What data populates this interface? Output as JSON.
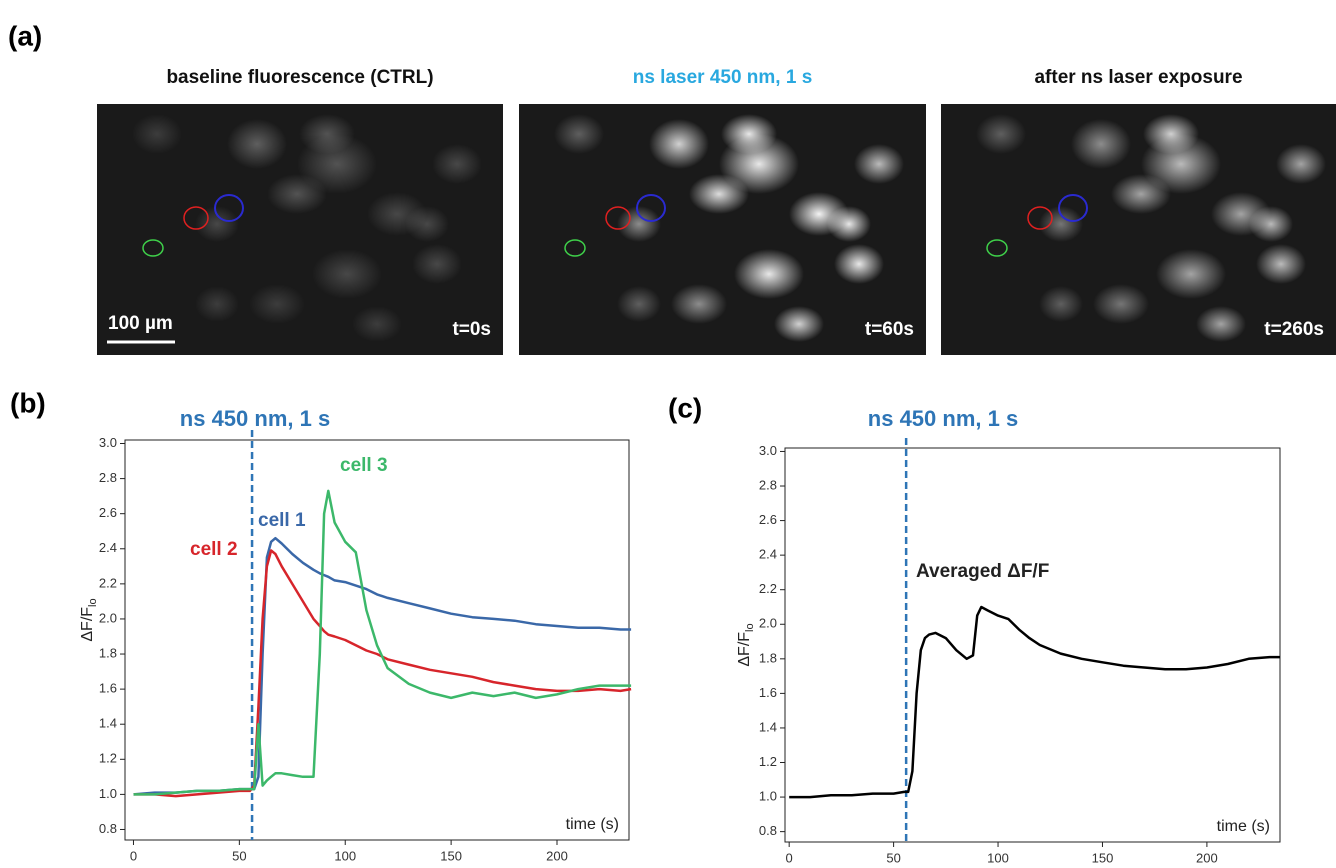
{
  "panel_a": {
    "label": "(a)",
    "images": [
      {
        "title": "baseline fluorescence (CTRL)",
        "time": "t=0s",
        "title_color": "#111111"
      },
      {
        "title": "ns laser 450 nm, 1 s",
        "time": "t=60s",
        "title_color": "#29a8df"
      },
      {
        "title": "after ns laser exposure",
        "time": "t=260s",
        "title_color": "#111111"
      }
    ],
    "scale_bar": "100 µm"
  },
  "chart_data": [
    {
      "type": "line",
      "label": "(b)",
      "marker": {
        "x": 56,
        "label": "ns 450 nm, 1 s"
      },
      "ylabel": [
        "ΔF/F",
        "lo"
      ],
      "xlabel": "time (s)",
      "x": [
        0,
        10,
        20,
        30,
        40,
        50,
        55,
        57,
        59,
        61,
        63,
        65,
        67,
        70,
        75,
        80,
        85,
        88,
        90,
        92,
        95,
        100,
        105,
        110,
        115,
        120,
        130,
        140,
        150,
        160,
        170,
        180,
        190,
        200,
        210,
        220,
        230,
        235
      ],
      "series": [
        {
          "name": "cell 1",
          "color": "#3a68a8",
          "values": [
            1.0,
            1.01,
            1.01,
            1.02,
            1.02,
            1.03,
            1.03,
            1.03,
            1.1,
            1.8,
            2.35,
            2.44,
            2.46,
            2.43,
            2.37,
            2.32,
            2.28,
            2.26,
            2.25,
            2.24,
            2.22,
            2.21,
            2.19,
            2.17,
            2.14,
            2.12,
            2.09,
            2.06,
            2.03,
            2.01,
            2.0,
            1.99,
            1.97,
            1.96,
            1.95,
            1.95,
            1.94,
            1.94
          ]
        },
        {
          "name": "cell 2",
          "color": "#d7252b",
          "values": [
            1.0,
            1.0,
            0.99,
            1.0,
            1.01,
            1.02,
            1.02,
            1.05,
            1.5,
            2.0,
            2.3,
            2.39,
            2.37,
            2.3,
            2.2,
            2.1,
            2.0,
            1.96,
            1.93,
            1.91,
            1.9,
            1.88,
            1.85,
            1.82,
            1.8,
            1.77,
            1.74,
            1.71,
            1.69,
            1.67,
            1.64,
            1.62,
            1.6,
            1.59,
            1.59,
            1.6,
            1.59,
            1.6
          ]
        },
        {
          "name": "cell 3",
          "color": "#3cb86a",
          "values": [
            1.0,
            1.0,
            1.01,
            1.02,
            1.02,
            1.03,
            1.03,
            1.03,
            1.4,
            1.05,
            1.08,
            1.1,
            1.12,
            1.12,
            1.11,
            1.1,
            1.1,
            1.8,
            2.6,
            2.73,
            2.55,
            2.44,
            2.38,
            2.05,
            1.85,
            1.72,
            1.63,
            1.58,
            1.55,
            1.58,
            1.56,
            1.58,
            1.55,
            1.57,
            1.6,
            1.62,
            1.62,
            1.62
          ]
        }
      ],
      "xlim": [
        -4,
        234
      ],
      "xticks": [
        0,
        50,
        100,
        150,
        200
      ],
      "ylim": [
        0.74,
        3.02
      ],
      "yticks": [
        0.8,
        {
          "value": 1,
          "label": "1.0"
        },
        1.2,
        1.4,
        1.6,
        1.8,
        {
          "value": 2,
          "label": "2.0"
        },
        2.2,
        2.4,
        2.6,
        2.8,
        {
          "value": 3,
          "label": "3.0"
        }
      ]
    },
    {
      "type": "line",
      "label": "(c)",
      "marker": {
        "x": 56,
        "label": "ns 450 nm, 1 s"
      },
      "ylabel": [
        "ΔF/F",
        "lo"
      ],
      "xlabel": "time (s)",
      "x": [
        0,
        10,
        20,
        30,
        40,
        50,
        55,
        57,
        59,
        61,
        63,
        65,
        67,
        70,
        75,
        80,
        85,
        88,
        90,
        92,
        95,
        100,
        105,
        110,
        115,
        120,
        130,
        140,
        150,
        160,
        170,
        180,
        190,
        200,
        210,
        220,
        230,
        235
      ],
      "series": [
        {
          "name": "Averaged ΔF/F",
          "color": "#000000",
          "values": [
            1.0,
            1.0,
            1.01,
            1.01,
            1.02,
            1.02,
            1.03,
            1.03,
            1.15,
            1.6,
            1.85,
            1.92,
            1.94,
            1.95,
            1.92,
            1.85,
            1.8,
            1.82,
            2.05,
            2.1,
            2.08,
            2.05,
            2.03,
            1.97,
            1.92,
            1.88,
            1.83,
            1.8,
            1.78,
            1.76,
            1.75,
            1.74,
            1.74,
            1.75,
            1.77,
            1.8,
            1.81,
            1.81
          ]
        }
      ],
      "xlim": [
        -2,
        235
      ],
      "xticks": [
        0,
        50,
        100,
        150,
        200
      ],
      "ylim": [
        0.74,
        3.02
      ],
      "yticks": [
        0.8,
        {
          "value": 1,
          "label": "1.0"
        },
        1.2,
        1.4,
        1.6,
        1.8,
        {
          "value": 2,
          "label": "2.0"
        },
        2.2,
        2.4,
        2.6,
        2.8,
        {
          "value": 3,
          "label": "3.0"
        }
      ]
    }
  ]
}
